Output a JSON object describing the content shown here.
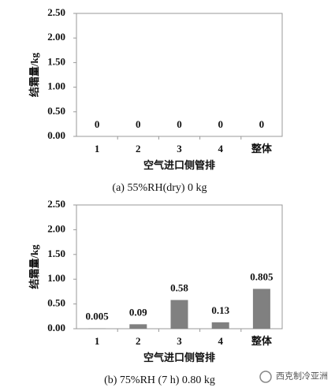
{
  "chart_data": [
    {
      "type": "bar",
      "caption": "(a) 55%RH(dry) 0 kg",
      "xlabel": "空气进口侧管排",
      "ylabel": "结霜量/kg",
      "categories": [
        "1",
        "2",
        "3",
        "4",
        "整体"
      ],
      "values": [
        0,
        0,
        0,
        0,
        0
      ],
      "color": "#808080",
      "ylim": [
        0,
        2.5
      ],
      "yticks": [
        {
          "value": 0,
          "label": "0.00"
        },
        {
          "value": 0.5,
          "label": "0.50"
        },
        {
          "value": 1,
          "label": "1.00"
        },
        {
          "value": 1.5,
          "label": "1.50"
        },
        {
          "value": 2,
          "label": "2.00"
        },
        {
          "value": 2.5,
          "label": "2.50"
        }
      ],
      "grid": false
    },
    {
      "type": "bar",
      "caption": "(b) 75%RH (7 h) 0.80 kg",
      "xlabel": "空气进口侧管排",
      "ylabel": "结霜量/kg",
      "categories": [
        "1",
        "2",
        "3",
        "4",
        "整体"
      ],
      "values": [
        0.005,
        0.09,
        0.58,
        0.13,
        0.805
      ],
      "color": "#808080",
      "ylim": [
        0,
        2.5
      ],
      "yticks": [
        {
          "value": 0,
          "label": "0.00"
        },
        {
          "value": 0.5,
          "label": "0.50"
        },
        {
          "value": 1,
          "label": "1.00"
        },
        {
          "value": 1.5,
          "label": "1.50"
        },
        {
          "value": 2,
          "label": "2.00"
        },
        {
          "value": 2.5,
          "label": "2.50"
        }
      ],
      "grid": false
    }
  ],
  "watermark": "西克制冷亚洲"
}
